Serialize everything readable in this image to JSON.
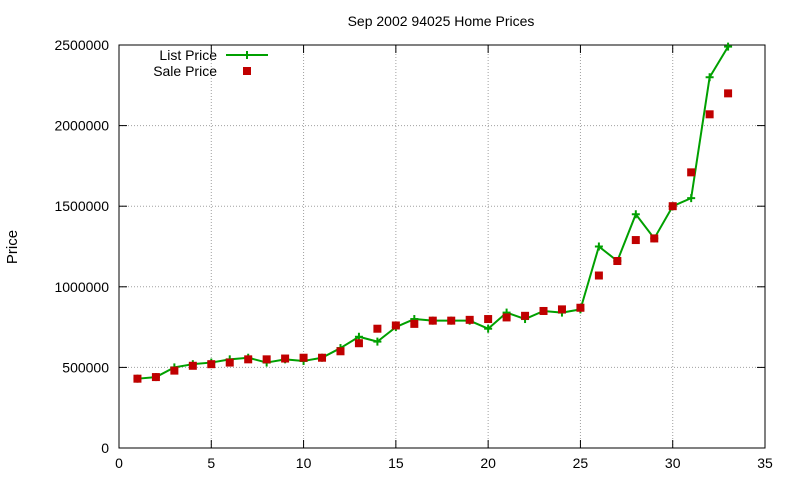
{
  "chart_data": {
    "type": "line",
    "title": "Sep 2002 94025 Home Prices",
    "xlabel": "",
    "ylabel": "Price",
    "xlim": [
      0,
      35
    ],
    "ylim": [
      0,
      2500000
    ],
    "x_ticks": [
      0,
      5,
      10,
      15,
      20,
      25,
      30,
      35
    ],
    "y_ticks": [
      0,
      500000,
      1000000,
      1500000,
      2000000,
      2500000
    ],
    "x_tick_labels": [
      "0",
      "5",
      "10",
      "15",
      "20",
      "25",
      "30",
      "35"
    ],
    "y_tick_labels": [
      "0",
      "500000",
      "1000000",
      "1500000",
      "2000000",
      "2500000"
    ],
    "grid": true,
    "legend_placement": "top-left",
    "x": [
      1,
      2,
      3,
      4,
      5,
      6,
      7,
      8,
      9,
      10,
      11,
      12,
      13,
      14,
      15,
      16,
      17,
      18,
      19,
      20,
      21,
      22,
      23,
      24,
      25,
      26,
      27,
      28,
      29,
      30,
      31,
      32,
      33
    ],
    "series": [
      {
        "name": "List Price",
        "style": "linespoints",
        "color": "#00a000",
        "marker": "plus",
        "values": [
          430000,
          440000,
          500000,
          520000,
          530000,
          550000,
          560000,
          530000,
          550000,
          540000,
          560000,
          620000,
          690000,
          660000,
          750000,
          800000,
          790000,
          790000,
          790000,
          740000,
          840000,
          800000,
          850000,
          840000,
          860000,
          1250000,
          1160000,
          1450000,
          1300000,
          1500000,
          1550000,
          2300000,
          2490000
        ]
      },
      {
        "name": "Sale Price",
        "style": "points",
        "color": "#c00000",
        "marker": "square",
        "values": [
          430000,
          440000,
          480000,
          510000,
          520000,
          530000,
          550000,
          550000,
          555000,
          560000,
          560000,
          600000,
          650000,
          740000,
          760000,
          770000,
          790000,
          790000,
          795000,
          800000,
          810000,
          820000,
          850000,
          860000,
          870000,
          1070000,
          1160000,
          1290000,
          1300000,
          1500000,
          1710000,
          2070000,
          2200000
        ]
      }
    ]
  }
}
